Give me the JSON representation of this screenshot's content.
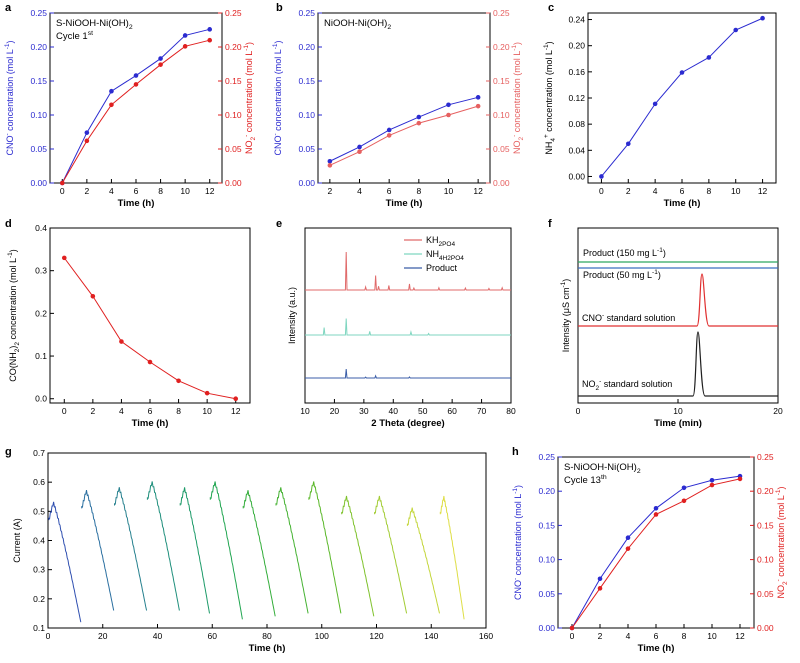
{
  "panel_letters": [
    "a",
    "b",
    "c",
    "d",
    "e",
    "f",
    "g",
    "h"
  ],
  "chart_data": [
    {
      "id": "a",
      "type": "line",
      "x": [
        0,
        2,
        4,
        6,
        8,
        10,
        12
      ],
      "series": [
        {
          "name": "CNO-",
          "axis": "left",
          "color": "#2b2bd0",
          "values": [
            0.0,
            0.074,
            0.135,
            0.158,
            0.183,
            0.217,
            0.226
          ]
        },
        {
          "name": "NO2-",
          "axis": "right",
          "color": "#e02020",
          "values": [
            0.0,
            0.062,
            0.115,
            0.145,
            0.174,
            0.201,
            0.21
          ]
        }
      ],
      "xlabel": "Time (h)",
      "ylabel": "CNO- concentration (mol L-1)",
      "ylabel_right": "NO2- concentration (mol L-1)",
      "xlim": [
        -1,
        13
      ],
      "ylim": [
        0,
        0.25
      ],
      "ylim_right": [
        0,
        0.25
      ],
      "xticks": [
        0,
        2,
        4,
        6,
        8,
        10,
        12
      ],
      "yticks": [
        0.0,
        0.05,
        0.1,
        0.15,
        0.2,
        0.25
      ],
      "annotations": [
        "S-NiOOH-Ni(OH)2",
        "Cycle 1st"
      ]
    },
    {
      "id": "b",
      "type": "line",
      "x": [
        2,
        4,
        6,
        8,
        10,
        12
      ],
      "series": [
        {
          "name": "CNO-",
          "axis": "left",
          "color": "#2b2bd0",
          "values": [
            0.032,
            0.053,
            0.078,
            0.097,
            0.115,
            0.126
          ]
        },
        {
          "name": "NO2-",
          "axis": "right",
          "color": "#e66060",
          "values": [
            0.026,
            0.046,
            0.07,
            0.088,
            0.1,
            0.113
          ]
        }
      ],
      "xlabel": "Time (h)",
      "ylabel": "CNO- concentration (mol L-1)",
      "ylabel_right": "NO2- concentration (mol L-1)",
      "xlim": [
        1.2,
        12.8
      ],
      "ylim": [
        0,
        0.25
      ],
      "ylim_right": [
        0,
        0.25
      ],
      "xticks": [
        2,
        4,
        6,
        8,
        10,
        12
      ],
      "yticks": [
        0.0,
        0.05,
        0.1,
        0.15,
        0.2,
        0.25
      ],
      "annotations": [
        "NiOOH-Ni(OH)2"
      ]
    },
    {
      "id": "c",
      "type": "line",
      "x": [
        0,
        2,
        4,
        6,
        8,
        10,
        12
      ],
      "series": [
        {
          "name": "NH4+",
          "axis": "left",
          "color": "#2b2bd0",
          "values": [
            0.0,
            0.05,
            0.111,
            0.159,
            0.182,
            0.224,
            0.242
          ]
        }
      ],
      "xlabel": "Time (h)",
      "ylabel": "NH4+ concentration (mol L-1)",
      "xlim": [
        -1,
        13
      ],
      "ylim": [
        -0.01,
        0.25
      ],
      "xticks": [
        0,
        2,
        4,
        6,
        8,
        10,
        12
      ],
      "yticks": [
        0.0,
        0.04,
        0.08,
        0.12,
        0.16,
        0.2,
        0.24
      ]
    },
    {
      "id": "d",
      "type": "line",
      "x": [
        0,
        2,
        4,
        6,
        8,
        10,
        12
      ],
      "series": [
        {
          "name": "CO(NH2)2",
          "axis": "left",
          "color": "#e02020",
          "values": [
            0.33,
            0.24,
            0.134,
            0.086,
            0.042,
            0.013,
            0.0
          ]
        }
      ],
      "xlabel": "Time (h)",
      "ylabel": "CO(NH2)2 concentration (mol L-1)",
      "xlim": [
        -1,
        13
      ],
      "ylim": [
        -0.01,
        0.4
      ],
      "xticks": [
        0,
        2,
        4,
        6,
        8,
        10,
        12
      ],
      "yticks": [
        0.0,
        0.1,
        0.2,
        0.3,
        0.4
      ]
    },
    {
      "id": "e",
      "type": "line",
      "legend": [
        {
          "name": "KH2PO4",
          "color": "#e06a6a"
        },
        {
          "name": "NH4H2PO4",
          "color": "#7fd6c0"
        },
        {
          "name": "Product",
          "color": "#3b5ea8"
        }
      ],
      "xlabel": "2 Theta (degree)",
      "ylabel": "Intensity (a.u.)",
      "xlim": [
        10,
        80
      ],
      "xticks": [
        10,
        20,
        30,
        40,
        50,
        60,
        70,
        80
      ],
      "patterns": [
        {
          "name": "KH2PO4",
          "color": "#e06a6a",
          "peaks": [
            [
              24,
              1.0
            ],
            [
              30.6,
              0.08
            ],
            [
              34,
              0.38
            ],
            [
              35,
              0.1
            ],
            [
              38.5,
              0.12
            ],
            [
              45.5,
              0.16
            ],
            [
              47,
              0.05
            ],
            [
              55.5,
              0.06
            ],
            [
              64.5,
              0.05
            ],
            [
              72.5,
              0.04
            ],
            [
              77,
              0.06
            ]
          ]
        },
        {
          "name": "NH4H2PO4",
          "color": "#7fd6c0",
          "peaks": [
            [
              16.5,
              0.25
            ],
            [
              24,
              0.55
            ],
            [
              32,
              0.12
            ],
            [
              46,
              0.1
            ],
            [
              52,
              0.05
            ]
          ]
        },
        {
          "name": "Product",
          "color": "#3b5ea8",
          "peaks": [
            [
              24,
              0.5
            ],
            [
              30.6,
              0.05
            ],
            [
              34,
              0.12
            ],
            [
              45.5,
              0.06
            ]
          ]
        }
      ]
    },
    {
      "id": "f",
      "type": "line",
      "xlabel": "Time (min)",
      "ylabel": "Intensity (μS cm-1)",
      "xlim": [
        0,
        20
      ],
      "xticks": [
        0,
        10,
        20
      ],
      "traces": [
        {
          "name": "Product (150 mg L-1)",
          "color": "#2fa860",
          "peak_at": null,
          "peak_height": 0
        },
        {
          "name": "Product (50 mg L-1)",
          "color": "#3a6fc0",
          "peak_at": null,
          "peak_height": 0
        },
        {
          "name": "CNO- standard solution",
          "color": "#e03030",
          "peak_at": 12.4,
          "peak_height": 1.0
        },
        {
          "name": "NO2- standard solution",
          "color": "#202020",
          "peak_at": 12.0,
          "peak_height": 1.0
        }
      ]
    },
    {
      "id": "g",
      "type": "line",
      "xlabel": "Time (h)",
      "ylabel": "Current (A)",
      "xlim": [
        0,
        160
      ],
      "ylim": [
        0.1,
        0.7
      ],
      "xticks": [
        0,
        20,
        40,
        60,
        80,
        100,
        120,
        140,
        160
      ],
      "yticks": [
        0.1,
        0.2,
        0.3,
        0.4,
        0.5,
        0.6,
        0.7
      ],
      "cycles": [
        {
          "start": 0,
          "end": 12,
          "peak": 0.53,
          "final": 0.12,
          "color": "#2f4fb0"
        },
        {
          "start": 12,
          "end": 24,
          "peak": 0.57,
          "final": 0.16,
          "color": "#2a6fa0"
        },
        {
          "start": 24,
          "end": 36,
          "peak": 0.58,
          "final": 0.16,
          "color": "#26808e"
        },
        {
          "start": 36,
          "end": 48,
          "peak": 0.6,
          "final": 0.16,
          "color": "#1f8f7c"
        },
        {
          "start": 48,
          "end": 59,
          "peak": 0.58,
          "final": 0.15,
          "color": "#1c9a68"
        },
        {
          "start": 59,
          "end": 71,
          "peak": 0.6,
          "final": 0.13,
          "color": "#20a550"
        },
        {
          "start": 71,
          "end": 83,
          "peak": 0.57,
          "final": 0.14,
          "color": "#33ad3a"
        },
        {
          "start": 83,
          "end": 95,
          "peak": 0.58,
          "final": 0.15,
          "color": "#45b232"
        },
        {
          "start": 95,
          "end": 107,
          "peak": 0.6,
          "final": 0.15,
          "color": "#5bb82a"
        },
        {
          "start": 107,
          "end": 119,
          "peak": 0.55,
          "final": 0.14,
          "color": "#7fc22c"
        },
        {
          "start": 119,
          "end": 131,
          "peak": 0.55,
          "final": 0.15,
          "color": "#a2cc34"
        },
        {
          "start": 131,
          "end": 143,
          "peak": 0.51,
          "final": 0.15,
          "color": "#c4d63c"
        },
        {
          "start": 143,
          "end": 152,
          "peak": 0.55,
          "final": 0.13,
          "color": "#dede46"
        }
      ]
    },
    {
      "id": "h",
      "type": "line",
      "x": [
        0,
        2,
        4,
        6,
        8,
        10,
        12
      ],
      "series": [
        {
          "name": "CNO-",
          "axis": "left",
          "color": "#2b2bd0",
          "values": [
            0.0,
            0.072,
            0.132,
            0.175,
            0.205,
            0.216,
            0.222
          ]
        },
        {
          "name": "NO2-",
          "axis": "right",
          "color": "#e02020",
          "values": [
            0.0,
            0.058,
            0.116,
            0.166,
            0.186,
            0.209,
            0.218
          ]
        }
      ],
      "xlabel": "Time (h)",
      "ylabel": "CNO- concentration (mol L-1)",
      "ylabel_right": "NO2- concentration (mol L-1)",
      "xlim": [
        -1,
        13
      ],
      "ylim": [
        0,
        0.25
      ],
      "ylim_right": [
        0,
        0.25
      ],
      "xticks": [
        0,
        2,
        4,
        6,
        8,
        10,
        12
      ],
      "yticks": [
        0.0,
        0.05,
        0.1,
        0.15,
        0.2,
        0.25
      ],
      "annotations": [
        "S-NiOOH-Ni(OH)2",
        "Cycle 13th"
      ]
    }
  ]
}
